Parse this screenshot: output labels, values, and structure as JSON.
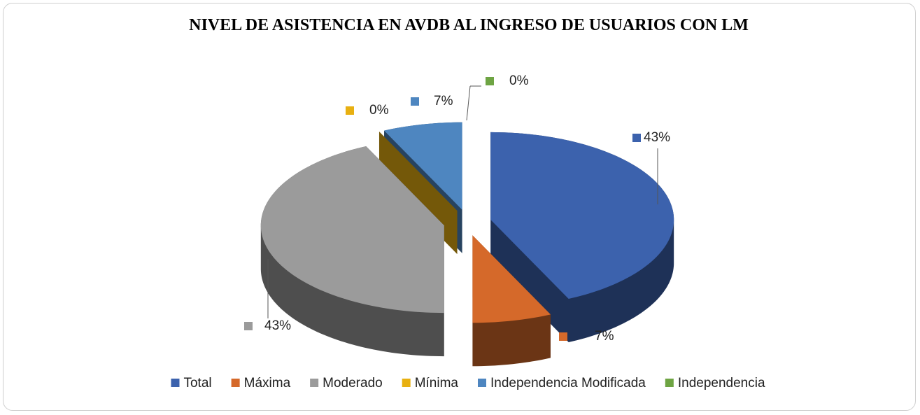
{
  "chart_data": {
    "type": "pie",
    "title": "NIVEL DE ASISTENCIA EN AVDB AL INGRESO DE USUARIOS CON LM",
    "categories": [
      "Total",
      "Máxima",
      "Moderado",
      "Mínima",
      "Independencia Modificada",
      "Independencia"
    ],
    "values": [
      43,
      7,
      43,
      0,
      7,
      0
    ],
    "value_labels": [
      "43%",
      "7%",
      "43%",
      "0%",
      "7%",
      "0%"
    ],
    "colors": [
      "#3c62ad",
      "#d5692a",
      "#9b9b9b",
      "#e8b011",
      "#4e86c0",
      "#6ea443"
    ],
    "legend": "bottom"
  }
}
